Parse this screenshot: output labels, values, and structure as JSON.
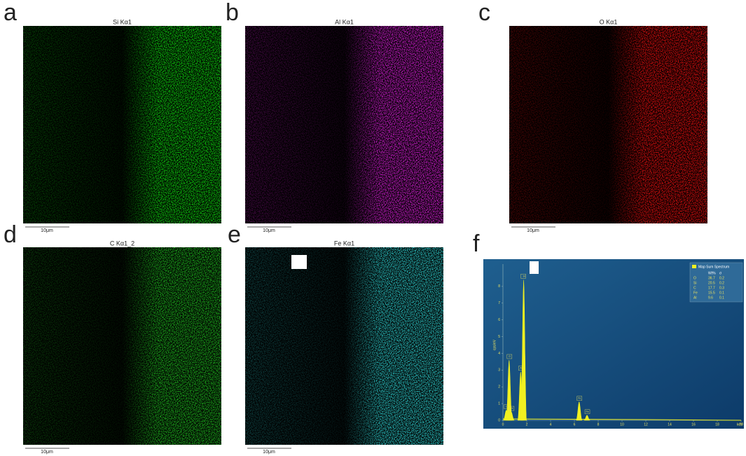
{
  "panels": [
    {
      "letter": "a",
      "title": "Si Kα1",
      "scale_bar": "10μm"
    },
    {
      "letter": "b",
      "title": "Al Kα1",
      "scale_bar": "10μm"
    },
    {
      "letter": "c",
      "title": "O Kα1",
      "scale_bar": "10μm"
    },
    {
      "letter": "d",
      "title": "C Kα1_2",
      "scale_bar": "10μm"
    },
    {
      "letter": "e",
      "title": "Fe Kα1",
      "scale_bar": "10μm"
    }
  ],
  "spectrum": {
    "letter": "f",
    "legend": "Map Sum Spectrum",
    "table": {
      "header": [
        "Wt%",
        "σ"
      ],
      "rows": [
        [
          "O",
          "36.7",
          "0.2"
        ],
        [
          "Si",
          "20.5",
          "0.2"
        ],
        [
          "C",
          "17.7",
          "0.3"
        ],
        [
          "Fe",
          "15.5",
          "0.1"
        ],
        [
          "Al",
          "9.6",
          "0.1"
        ]
      ]
    },
    "x_label": "keV",
    "y_label": "cps/eV",
    "xlim": [
      0,
      20
    ],
    "xticks": [
      0,
      2,
      4,
      6,
      8,
      10,
      12,
      14,
      16,
      18,
      20
    ],
    "ylim": [
      0,
      9
    ],
    "yticks": [
      0,
      1,
      2,
      3,
      4,
      5,
      6,
      7,
      8
    ],
    "peaks": [
      {
        "label": "C",
        "x": 0.28,
        "height": 0.6
      },
      {
        "label": "O",
        "x": 0.52,
        "height": 3.6
      },
      {
        "label": "Fe",
        "x": 0.7,
        "height": 0.5
      },
      {
        "label": "Al",
        "x": 1.49,
        "height": 2.9
      },
      {
        "label": "Si",
        "x": 1.74,
        "height": 8.4
      },
      {
        "label": "Fe",
        "x": 6.4,
        "height": 1.1
      },
      {
        "label": "Fe",
        "x": 7.06,
        "height": 0.3
      }
    ]
  }
}
